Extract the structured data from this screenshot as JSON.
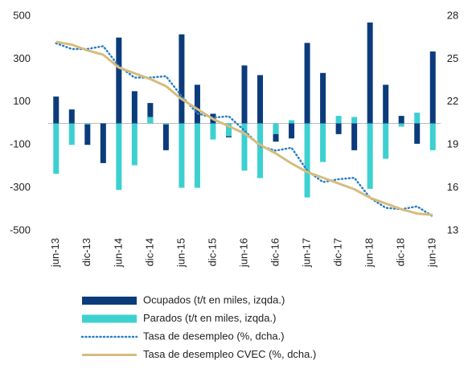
{
  "chart_data": {
    "type": "bar-line",
    "categories": [
      "jun-13",
      null,
      "dic-13",
      null,
      "jun-14",
      null,
      "dic-14",
      null,
      "jun-15",
      null,
      "dic-15",
      null,
      "jun-16",
      null,
      "dic-16",
      null,
      "jun-17",
      null,
      "dic-17",
      null,
      "jun-18",
      null,
      "dic-18",
      null,
      "jun-19"
    ],
    "series": [
      {
        "name": "Ocupados (t/t en miles, izqda.)",
        "color": "#0c3b7c",
        "kind": "bar",
        "values": [
          125,
          65,
          -100,
          -185,
          400,
          150,
          95,
          -125,
          415,
          180,
          45,
          -65,
          270,
          225,
          -85,
          -70,
          375,
          235,
          -50,
          -125,
          470,
          180,
          35,
          -95,
          335
        ]
      },
      {
        "name": "Parados (t/t en miles, izqda.)",
        "color": "#3dd0d0",
        "kind": "bar",
        "values": [
          -235,
          -100,
          -5,
          0,
          -310,
          -195,
          30,
          -5,
          -300,
          -300,
          -75,
          -60,
          -220,
          -255,
          -50,
          15,
          -345,
          -180,
          35,
          30,
          -305,
          -165,
          -15,
          50,
          -125
        ]
      },
      {
        "name": "Tasa de desempleo (%, dcha.)",
        "color": "#2b7fc3",
        "kind": "dotted",
        "axis": "y2",
        "values": [
          26.1,
          25.7,
          25.7,
          25.9,
          24.5,
          23.7,
          23.7,
          23.8,
          22.4,
          21.2,
          20.9,
          21.0,
          20.0,
          18.9,
          18.6,
          18.8,
          17.2,
          16.4,
          16.6,
          16.7,
          15.3,
          14.6,
          14.5,
          14.7,
          14.0
        ]
      },
      {
        "name": "Tasa de desempleo CVEC (%, dcha.)",
        "color": "#d6bc7e",
        "kind": "line",
        "axis": "y2",
        "values": [
          26.2,
          26.0,
          25.6,
          25.3,
          24.4,
          24.0,
          23.6,
          23.1,
          22.2,
          21.5,
          20.8,
          20.3,
          19.8,
          19.0,
          18.4,
          17.7,
          17.1,
          16.7,
          16.3,
          15.9,
          15.3,
          14.9,
          14.5,
          14.2,
          14.1
        ]
      }
    ],
    "ylim": [
      -500,
      500
    ],
    "yticks": [
      -500,
      -300,
      -100,
      100,
      300,
      500
    ],
    "y2lim": [
      13,
      28
    ],
    "y2ticks": [
      13,
      16,
      19,
      22,
      25,
      28
    ]
  }
}
